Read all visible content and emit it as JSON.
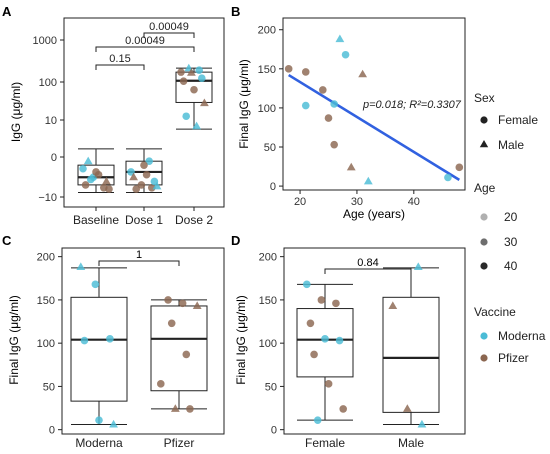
{
  "colors": {
    "moderna": "#4bbcd6",
    "pfizer": "#8b6650",
    "line": "#3161e0",
    "box": "#222222"
  },
  "panels": {
    "A": {
      "label": "A",
      "ylabel": "IgG (μg/ml)",
      "categories": [
        "Baseline",
        "Dose 1",
        "Dose 2"
      ],
      "ytick_labels": [
        "1000",
        "100",
        "10",
        "0",
        "−10"
      ],
      "brackets": [
        {
          "from": "Baseline",
          "to": "Dose 1",
          "label": "0.15"
        },
        {
          "from": "Baseline",
          "to": "Dose 2",
          "label": "0.00049"
        },
        {
          "from": "Dose 1",
          "to": "Dose 2",
          "label": "0.00049"
        }
      ]
    },
    "B": {
      "label": "B",
      "xlabel": "Age (years)",
      "ylabel": "Final IgG (μg/ml)",
      "annotation_p": "p=0.018; ",
      "annotation_r2": "R²=0.3307",
      "xticks": [
        "20",
        "30",
        "40"
      ],
      "yticks": [
        "0",
        "50",
        "100",
        "150",
        "200"
      ]
    },
    "C": {
      "label": "C",
      "ylabel": "Final IgG (μg/ml)",
      "categories": [
        "Moderna",
        "Pfizer"
      ],
      "yticks": [
        "0",
        "50",
        "100",
        "150",
        "200"
      ],
      "bracket_label": "1"
    },
    "D": {
      "label": "D",
      "ylabel": "Final IgG (μg/ml)",
      "categories": [
        "Female",
        "Male"
      ],
      "yticks": [
        "0",
        "50",
        "100",
        "150",
        "200"
      ],
      "bracket_label": "0.84"
    }
  },
  "legend": {
    "sex_title": "Sex",
    "sex_items": [
      "Female",
      "Male"
    ],
    "age_title": "Age",
    "age_items": [
      "20",
      "30",
      "40"
    ],
    "vaccine_title": "Vaccine",
    "vaccine_items": [
      "Moderna",
      "Pfizer"
    ]
  },
  "chart_data": [
    {
      "panel": "A",
      "type": "box",
      "categories": [
        "Baseline",
        "Dose 1",
        "Dose 2"
      ],
      "y_scale": "pseudo-log",
      "boxes": [
        {
          "whisker_low": -8,
          "q1": -5,
          "median": -3,
          "q3": -1,
          "whisker_high": 1
        },
        {
          "whisker_low": -8,
          "q1": -5,
          "median": -2,
          "q3": -0.5,
          "whisker_high": 1
        },
        {
          "whisker_low": 5,
          "q1": 25,
          "median": 90,
          "q3": 150,
          "whisker_high": 190
        }
      ],
      "points": [
        {
          "cat": 0,
          "y": -1.5,
          "vaccine": "Moderna",
          "sex": "Female"
        },
        {
          "cat": 0,
          "y": -3,
          "vaccine": "Moderna",
          "sex": "Female"
        },
        {
          "cat": 0,
          "y": -6,
          "vaccine": "Pfizer",
          "sex": "Female"
        },
        {
          "cat": 0,
          "y": -5,
          "vaccine": "Pfizer",
          "sex": "Female"
        },
        {
          "cat": 0,
          "y": -2,
          "vaccine": "Pfizer",
          "sex": "Female"
        },
        {
          "cat": 0,
          "y": -4,
          "vaccine": "Pfizer",
          "sex": "Male"
        },
        {
          "cat": 0,
          "y": -0.5,
          "vaccine": "Moderna",
          "sex": "Male"
        },
        {
          "cat": 0,
          "y": -2.5,
          "vaccine": "Pfizer",
          "sex": "Female"
        },
        {
          "cat": 0,
          "y": -6.5,
          "vaccine": "Pfizer",
          "sex": "Female"
        },
        {
          "cat": 0,
          "y": -3.5,
          "vaccine": "Moderna",
          "sex": "Female"
        },
        {
          "cat": 1,
          "y": -0.5,
          "vaccine": "Moderna",
          "sex": "Female"
        },
        {
          "cat": 1,
          "y": -2,
          "vaccine": "Moderna",
          "sex": "Female"
        },
        {
          "cat": 1,
          "y": -5,
          "vaccine": "Pfizer",
          "sex": "Female"
        },
        {
          "cat": 1,
          "y": -6,
          "vaccine": "Pfizer",
          "sex": "Female"
        },
        {
          "cat": 1,
          "y": -3,
          "vaccine": "Pfizer",
          "sex": "Male"
        },
        {
          "cat": 1,
          "y": -1,
          "vaccine": "Pfizer",
          "sex": "Female"
        },
        {
          "cat": 1,
          "y": -4,
          "vaccine": "Moderna",
          "sex": "Female"
        },
        {
          "cat": 1,
          "y": -6.5,
          "vaccine": "Pfizer",
          "sex": "Female"
        },
        {
          "cat": 1,
          "y": -2.5,
          "vaccine": "Pfizer",
          "sex": "Female"
        },
        {
          "cat": 1,
          "y": -5.5,
          "vaccine": "Moderna",
          "sex": "Male"
        },
        {
          "cat": 2,
          "y": 188,
          "vaccine": "Moderna",
          "sex": "Male"
        },
        {
          "cat": 2,
          "y": 168,
          "vaccine": "Moderna",
          "sex": "Female"
        },
        {
          "cat": 2,
          "y": 150,
          "vaccine": "Pfizer",
          "sex": "Female"
        },
        {
          "cat": 2,
          "y": 145,
          "vaccine": "Pfizer",
          "sex": "Male"
        },
        {
          "cat": 2,
          "y": 105,
          "vaccine": "Moderna",
          "sex": "Female"
        },
        {
          "cat": 2,
          "y": 88,
          "vaccine": "Pfizer",
          "sex": "Female"
        },
        {
          "cat": 2,
          "y": 53,
          "vaccine": "Pfizer",
          "sex": "Female"
        },
        {
          "cat": 2,
          "y": 24,
          "vaccine": "Pfizer",
          "sex": "Male"
        },
        {
          "cat": 2,
          "y": 11,
          "vaccine": "Moderna",
          "sex": "Female"
        },
        {
          "cat": 2,
          "y": 6,
          "vaccine": "Moderna",
          "sex": "Male"
        }
      ]
    },
    {
      "panel": "B",
      "type": "scatter",
      "xlim": [
        17,
        49
      ],
      "ylim": [
        -5,
        215
      ],
      "regression": {
        "x": [
          18,
          48
        ],
        "y": [
          142,
          8
        ]
      },
      "points": [
        {
          "x": 18,
          "y": 150,
          "vaccine": "Pfizer",
          "sex": "Female",
          "age": 18
        },
        {
          "x": 21,
          "y": 146,
          "vaccine": "Pfizer",
          "sex": "Female",
          "age": 21
        },
        {
          "x": 21,
          "y": 103,
          "vaccine": "Moderna",
          "sex": "Female",
          "age": 21
        },
        {
          "x": 24,
          "y": 123,
          "vaccine": "Pfizer",
          "sex": "Female",
          "age": 24
        },
        {
          "x": 25,
          "y": 87,
          "vaccine": "Pfizer",
          "sex": "Female",
          "age": 25
        },
        {
          "x": 26,
          "y": 105,
          "vaccine": "Moderna",
          "sex": "Female",
          "age": 26
        },
        {
          "x": 26,
          "y": 53,
          "vaccine": "Pfizer",
          "sex": "Female",
          "age": 26
        },
        {
          "x": 27,
          "y": 188,
          "vaccine": "Moderna",
          "sex": "Male",
          "age": 27
        },
        {
          "x": 28,
          "y": 168,
          "vaccine": "Moderna",
          "sex": "Female",
          "age": 28
        },
        {
          "x": 29,
          "y": 24,
          "vaccine": "Pfizer",
          "sex": "Male",
          "age": 29
        },
        {
          "x": 31,
          "y": 143,
          "vaccine": "Pfizer",
          "sex": "Male",
          "age": 31
        },
        {
          "x": 32,
          "y": 6,
          "vaccine": "Moderna",
          "sex": "Male",
          "age": 32
        },
        {
          "x": 46,
          "y": 11,
          "vaccine": "Moderna",
          "sex": "Female",
          "age": 46
        },
        {
          "x": 48,
          "y": 24,
          "vaccine": "Pfizer",
          "sex": "Female",
          "age": 48
        }
      ]
    },
    {
      "panel": "C",
      "type": "box",
      "categories": [
        "Moderna",
        "Pfizer"
      ],
      "ylim": [
        -5,
        210
      ],
      "boxes": [
        {
          "whisker_low": 6,
          "q1": 33,
          "median": 104,
          "q3": 153,
          "whisker_high": 187
        },
        {
          "whisker_low": 24,
          "q1": 45,
          "median": 105,
          "q3": 143,
          "whisker_high": 150
        }
      ],
      "points": [
        {
          "cat": 0,
          "y": 188,
          "vaccine": "Moderna",
          "sex": "Male"
        },
        {
          "cat": 0,
          "y": 168,
          "vaccine": "Moderna",
          "sex": "Female"
        },
        {
          "cat": 0,
          "y": 105,
          "vaccine": "Moderna",
          "sex": "Female"
        },
        {
          "cat": 0,
          "y": 103,
          "vaccine": "Moderna",
          "sex": "Female"
        },
        {
          "cat": 0,
          "y": 11,
          "vaccine": "Moderna",
          "sex": "Female"
        },
        {
          "cat": 0,
          "y": 6,
          "vaccine": "Moderna",
          "sex": "Male"
        },
        {
          "cat": 1,
          "y": 150,
          "vaccine": "Pfizer",
          "sex": "Female"
        },
        {
          "cat": 1,
          "y": 146,
          "vaccine": "Pfizer",
          "sex": "Female"
        },
        {
          "cat": 1,
          "y": 143,
          "vaccine": "Pfizer",
          "sex": "Male"
        },
        {
          "cat": 1,
          "y": 123,
          "vaccine": "Pfizer",
          "sex": "Female"
        },
        {
          "cat": 1,
          "y": 87,
          "vaccine": "Pfizer",
          "sex": "Female"
        },
        {
          "cat": 1,
          "y": 53,
          "vaccine": "Pfizer",
          "sex": "Female"
        },
        {
          "cat": 1,
          "y": 24,
          "vaccine": "Pfizer",
          "sex": "Male"
        },
        {
          "cat": 1,
          "y": 24,
          "vaccine": "Pfizer",
          "sex": "Female"
        }
      ]
    },
    {
      "panel": "D",
      "type": "box",
      "categories": [
        "Female",
        "Male"
      ],
      "ylim": [
        -5,
        210
      ],
      "boxes": [
        {
          "whisker_low": 11,
          "q1": 61,
          "median": 104,
          "q3": 140,
          "whisker_high": 168
        },
        {
          "whisker_low": 6,
          "q1": 20,
          "median": 83,
          "q3": 153,
          "whisker_high": 187
        }
      ],
      "points": [
        {
          "cat": 0,
          "y": 168,
          "vaccine": "Moderna",
          "sex": "Female"
        },
        {
          "cat": 0,
          "y": 150,
          "vaccine": "Pfizer",
          "sex": "Female"
        },
        {
          "cat": 0,
          "y": 146,
          "vaccine": "Pfizer",
          "sex": "Female"
        },
        {
          "cat": 0,
          "y": 123,
          "vaccine": "Pfizer",
          "sex": "Female"
        },
        {
          "cat": 0,
          "y": 105,
          "vaccine": "Moderna",
          "sex": "Female"
        },
        {
          "cat": 0,
          "y": 103,
          "vaccine": "Moderna",
          "sex": "Female"
        },
        {
          "cat": 0,
          "y": 87,
          "vaccine": "Pfizer",
          "sex": "Female"
        },
        {
          "cat": 0,
          "y": 53,
          "vaccine": "Pfizer",
          "sex": "Female"
        },
        {
          "cat": 0,
          "y": 24,
          "vaccine": "Pfizer",
          "sex": "Female"
        },
        {
          "cat": 0,
          "y": 11,
          "vaccine": "Moderna",
          "sex": "Female"
        },
        {
          "cat": 1,
          "y": 188,
          "vaccine": "Moderna",
          "sex": "Male"
        },
        {
          "cat": 1,
          "y": 143,
          "vaccine": "Pfizer",
          "sex": "Male"
        },
        {
          "cat": 1,
          "y": 24,
          "vaccine": "Pfizer",
          "sex": "Male"
        },
        {
          "cat": 1,
          "y": 6,
          "vaccine": "Moderna",
          "sex": "Male"
        }
      ]
    }
  ]
}
